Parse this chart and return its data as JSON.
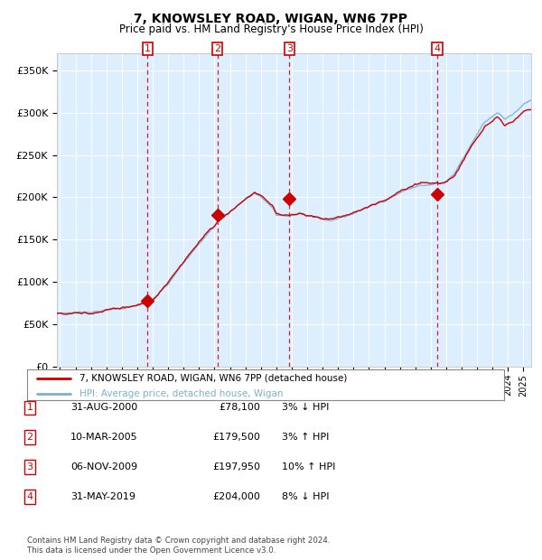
{
  "title": "7, KNOWSLEY ROAD, WIGAN, WN6 7PP",
  "subtitle": "Price paid vs. HM Land Registry's House Price Index (HPI)",
  "legend_line1": "7, KNOWSLEY ROAD, WIGAN, WN6 7PP (detached house)",
  "legend_line2": "HPI: Average price, detached house, Wigan",
  "table_rows": [
    {
      "num": 1,
      "date": "31-AUG-2000",
      "price": "£78,100",
      "pct": "3% ↓ HPI"
    },
    {
      "num": 2,
      "date": "10-MAR-2005",
      "price": "£179,500",
      "pct": "3% ↑ HPI"
    },
    {
      "num": 3,
      "date": "06-NOV-2009",
      "price": "£197,950",
      "pct": "10% ↑ HPI"
    },
    {
      "num": 4,
      "date": "31-MAY-2019",
      "price": "£204,000",
      "pct": "8% ↓ HPI"
    }
  ],
  "footnote1": "Contains HM Land Registry data © Crown copyright and database right 2024.",
  "footnote2": "This data is licensed under the Open Government Licence v3.0.",
  "hpi_color": "#7ab0d4",
  "price_color": "#cc0000",
  "marker_color": "#cc0000",
  "bg_color": "#ddeeff",
  "grid_color": "#ffffff",
  "trans_years": [
    2000.67,
    2005.19,
    2009.85,
    2019.42
  ],
  "trans_prices": [
    78100,
    179500,
    197950,
    204000
  ],
  "ylim": [
    0,
    370000
  ],
  "yticks": [
    0,
    50000,
    100000,
    150000,
    200000,
    250000,
    300000,
    350000
  ],
  "ytick_labels": [
    "£0",
    "£50K",
    "£100K",
    "£150K",
    "£200K",
    "£250K",
    "£300K",
    "£350K"
  ],
  "xlim_start": 1994.8,
  "xlim_end": 2025.5
}
